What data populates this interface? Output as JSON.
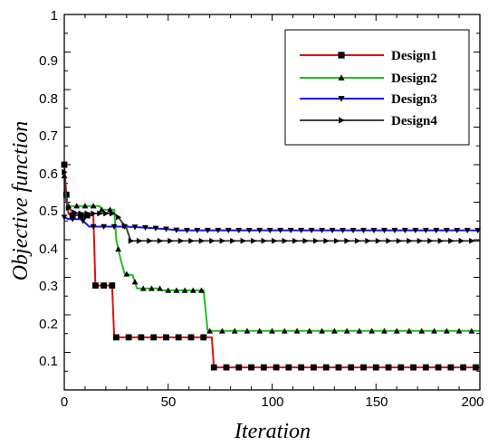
{
  "chart_data": {
    "type": "line",
    "title": "",
    "xlabel": "Iteration",
    "ylabel": "Objective function",
    "xlim": [
      0,
      200
    ],
    "ylim": [
      0,
      1
    ],
    "x_ticks": [
      "0",
      "50",
      "100",
      "150",
      "200"
    ],
    "y_ticks": [
      "0.1",
      "0.2",
      "0.3",
      "0.4",
      "0.5",
      "0.6",
      "0.7",
      "0.8",
      "0.9",
      "1"
    ],
    "grid": false,
    "legend_position": "top-right",
    "series": [
      {
        "name": "Design1",
        "color": "#e01010",
        "marker": "square",
        "points": [
          [
            0,
            0.6
          ],
          [
            1,
            0.52
          ],
          [
            2,
            0.47
          ],
          [
            3,
            0.465
          ],
          [
            14,
            0.465
          ],
          [
            15,
            0.278
          ],
          [
            23,
            0.278
          ],
          [
            24,
            0.14
          ],
          [
            71,
            0.14
          ],
          [
            72,
            0.06
          ],
          [
            200,
            0.06
          ]
        ],
        "marker_x": [
          0,
          1,
          4,
          8,
          11,
          15,
          19,
          23,
          25,
          31,
          37,
          43,
          49,
          55,
          61,
          67,
          72,
          78,
          84,
          90,
          96,
          102,
          108,
          114,
          120,
          126,
          132,
          138,
          144,
          150,
          156,
          162,
          168,
          174,
          180,
          186,
          192,
          198
        ]
      },
      {
        "name": "Design2",
        "color": "#20c020",
        "marker": "triangle-up",
        "points": [
          [
            0,
            0.57
          ],
          [
            1,
            0.5
          ],
          [
            2,
            0.49
          ],
          [
            17,
            0.49
          ],
          [
            18,
            0.48
          ],
          [
            24,
            0.48
          ],
          [
            25,
            0.4
          ],
          [
            27,
            0.35
          ],
          [
            29,
            0.31
          ],
          [
            33,
            0.305
          ],
          [
            35,
            0.27
          ],
          [
            46,
            0.27
          ],
          [
            47,
            0.265
          ],
          [
            67,
            0.265
          ],
          [
            69,
            0.157
          ],
          [
            200,
            0.157
          ]
        ],
        "marker_x": [
          0,
          2,
          6,
          10,
          14,
          18,
          22,
          26,
          30,
          34,
          38,
          42,
          46,
          50,
          54,
          58,
          62,
          66,
          70,
          76,
          82,
          88,
          94,
          100,
          106,
          112,
          118,
          124,
          130,
          136,
          142,
          148,
          154,
          160,
          166,
          172,
          178,
          184,
          190,
          196
        ]
      },
      {
        "name": "Design3",
        "color": "#1010ff",
        "marker": "triangle-down",
        "points": [
          [
            0,
            0.46
          ],
          [
            2,
            0.455
          ],
          [
            8,
            0.455
          ],
          [
            10,
            0.445
          ],
          [
            12,
            0.435
          ],
          [
            30,
            0.435
          ],
          [
            40,
            0.432
          ],
          [
            50,
            0.428
          ],
          [
            55,
            0.425
          ],
          [
            200,
            0.425
          ]
        ],
        "marker_x": [
          0,
          4,
          9,
          14,
          19,
          24,
          29,
          34,
          39,
          44,
          49,
          54,
          59,
          64,
          69,
          74,
          79,
          84,
          89,
          94,
          99,
          104,
          109,
          114,
          119,
          124,
          129,
          134,
          139,
          144,
          149,
          154,
          159,
          164,
          169,
          174,
          179,
          184,
          189,
          194,
          199
        ]
      },
      {
        "name": "Design4",
        "color": "#404040",
        "marker": "triangle-right",
        "points": [
          [
            0,
            0.58
          ],
          [
            1,
            0.5
          ],
          [
            2,
            0.485
          ],
          [
            4,
            0.475
          ],
          [
            6,
            0.47
          ],
          [
            24,
            0.47
          ],
          [
            26,
            0.46
          ],
          [
            28,
            0.445
          ],
          [
            30,
            0.43
          ],
          [
            32,
            0.397
          ],
          [
            200,
            0.397
          ]
        ],
        "marker_x": [
          0,
          2,
          5,
          8,
          11,
          14,
          17,
          20,
          23,
          26,
          29,
          32,
          36,
          41,
          46,
          51,
          56,
          61,
          66,
          71,
          76,
          81,
          86,
          91,
          96,
          101,
          106,
          111,
          116,
          121,
          126,
          131,
          136,
          141,
          146,
          151,
          156,
          161,
          166,
          171,
          176,
          181,
          186,
          191,
          196
        ]
      }
    ]
  }
}
